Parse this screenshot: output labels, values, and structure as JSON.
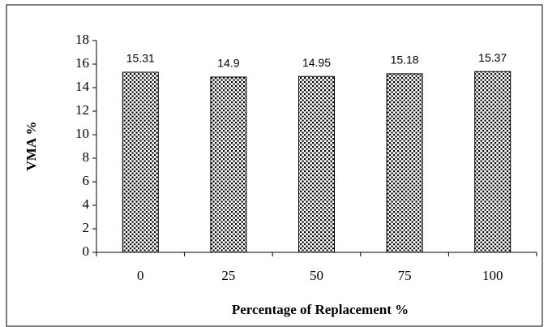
{
  "chart_data": {
    "type": "bar",
    "x_label": "Percentage of Replacement %",
    "y_label": "VMA %",
    "categories": [
      "0",
      "25",
      "50",
      "75",
      "100"
    ],
    "values": [
      15.31,
      14.9,
      14.95,
      15.18,
      15.37
    ],
    "ylim": [
      0,
      18
    ],
    "yticks": [
      0,
      2,
      4,
      6,
      8,
      10,
      12,
      14,
      16,
      18
    ]
  }
}
